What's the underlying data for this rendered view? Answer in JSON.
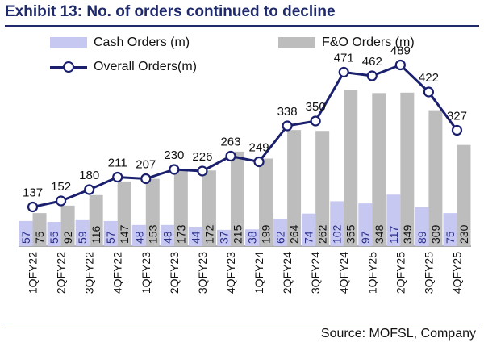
{
  "title": "Exhibit 13: No. of orders continued to decline",
  "source": "Source: MOFSL, Company",
  "colors": {
    "cash": "#c7c8f2",
    "fo": "#bdbdbd",
    "line": "#1a1f6e",
    "title": "#1f2a6b"
  },
  "chart_data": {
    "type": "bar",
    "title": "Exhibit 13: No. of orders continued to decline",
    "categories": [
      "1QFY22",
      "2QFY22",
      "3QFY22",
      "4QFY22",
      "1QFY23",
      "2QFY23",
      "3QFY23",
      "4QFY23",
      "1QFY24",
      "2QFY24",
      "3QFY24",
      "4QFY24",
      "1QFY25",
      "2QFY25",
      "3QFY25",
      "4QFY25"
    ],
    "series": [
      {
        "name": "Cash Orders (m)",
        "type": "bar",
        "values": [
          57,
          55,
          59,
          57,
          48,
          48,
          44,
          37,
          38,
          62,
          74,
          102,
          97,
          117,
          89,
          75
        ]
      },
      {
        "name": "F&O Orders (m)",
        "type": "bar",
        "values": [
          75,
          92,
          116,
          147,
          153,
          173,
          172,
          215,
          199,
          264,
          262,
          355,
          348,
          349,
          309,
          230
        ]
      },
      {
        "name": "Overall Orders(m)",
        "type": "line",
        "values": [
          137,
          152,
          180,
          211,
          207,
          230,
          226,
          263,
          249,
          338,
          350,
          471,
          462,
          489,
          422,
          327
        ]
      }
    ],
    "legend": "top",
    "grid": false
  }
}
